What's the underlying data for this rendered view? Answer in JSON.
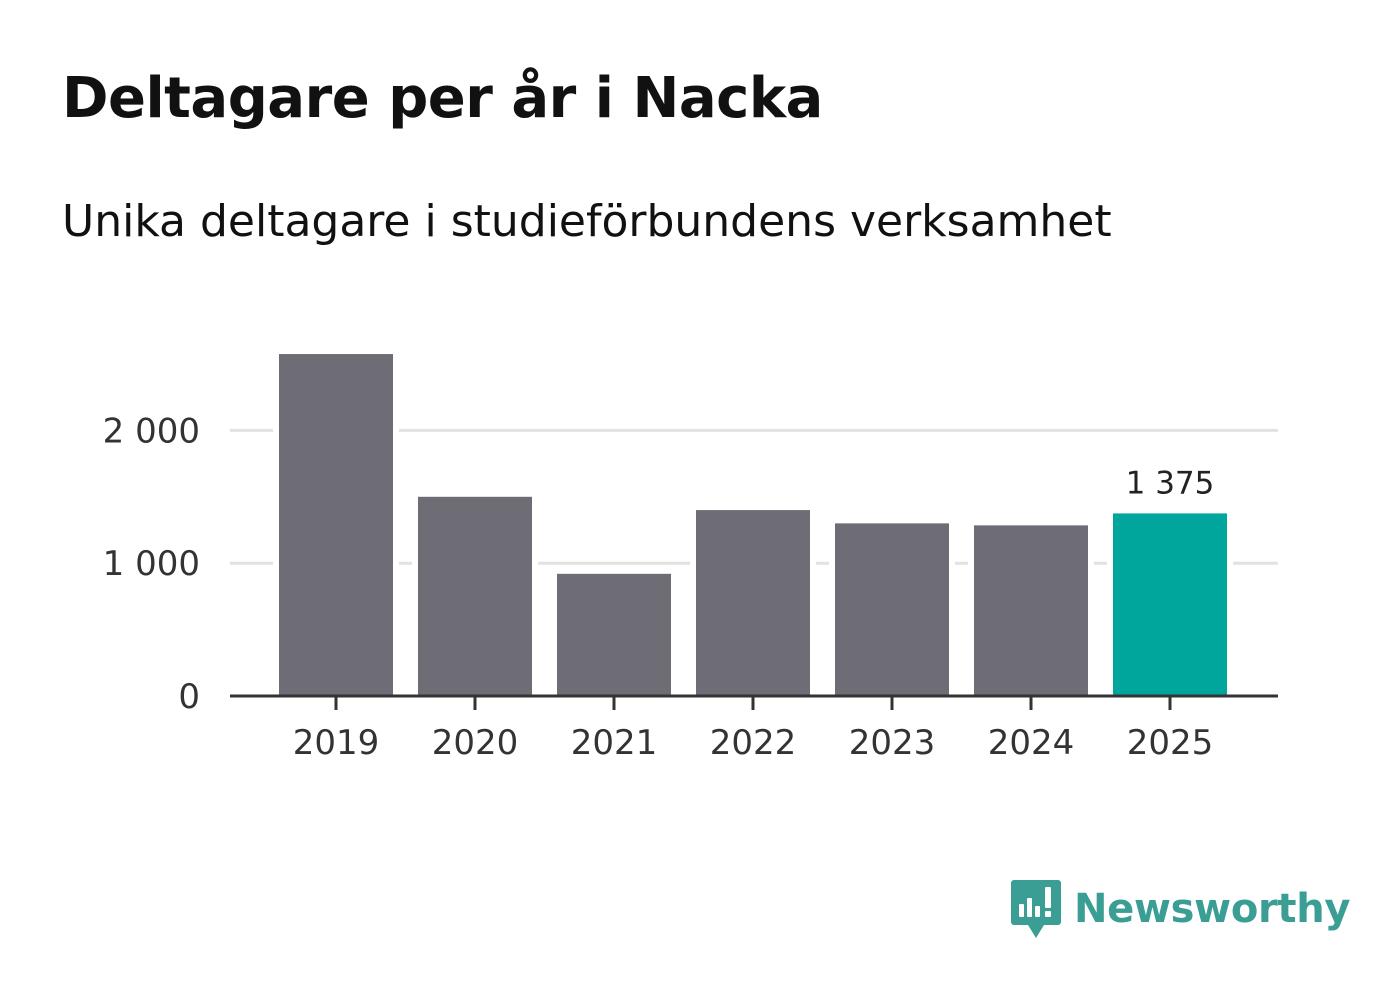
{
  "header": {
    "title": "Deltagare per år i Nacka",
    "subtitle": "Unika deltagare i studieförbundens verksamhet"
  },
  "brand": {
    "name": "Newsworthy",
    "logo_icon": "newsworthy-logo-icon",
    "color": "#3a9e94"
  },
  "chart_data": {
    "type": "bar",
    "title": "Deltagare per år i Nacka",
    "subtitle": "Unika deltagare i studieförbundens verksamhet",
    "xlabel": "",
    "ylabel": "",
    "categories": [
      "2019",
      "2020",
      "2021",
      "2022",
      "2023",
      "2024",
      "2025"
    ],
    "values": [
      2575,
      1500,
      920,
      1400,
      1300,
      1285,
      1375
    ],
    "ylim": [
      0,
      2600
    ],
    "yticks": [
      0,
      1000,
      2000
    ],
    "ytick_labels": [
      "0",
      "1 000",
      "2 000"
    ],
    "grid": true,
    "colors": {
      "default": "#6e6d75",
      "highlight": "#00a59b"
    },
    "highlight_index": 6,
    "annotations": [
      {
        "category": "2025",
        "label": "1 375"
      }
    ]
  }
}
